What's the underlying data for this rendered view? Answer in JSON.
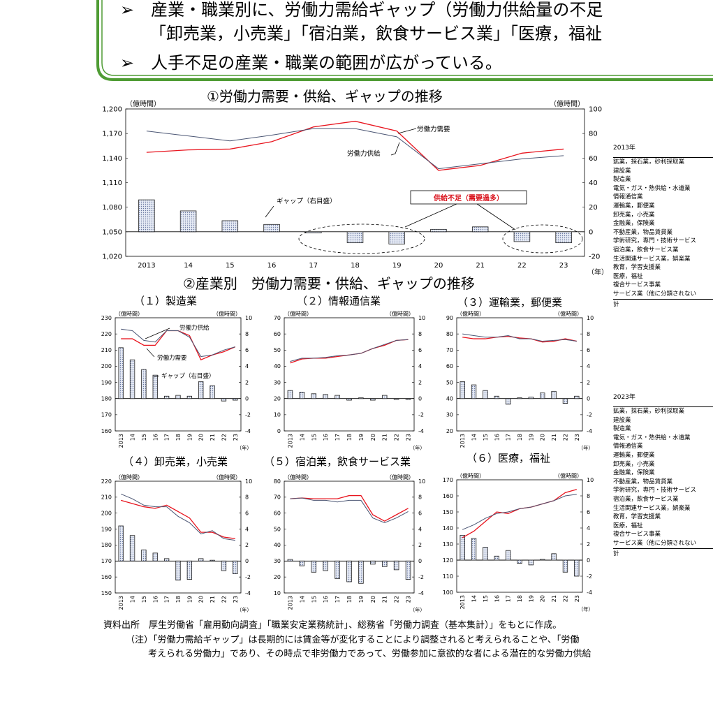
{
  "header": {
    "bullets": [
      "産業・職業別に、労働力需給ギャップ（労働力供給量の不足",
      "「卸売業，小売業」「宿泊業，飲食サービス業」「医療，福祉",
      "人手不足の産業・職業の範囲が広がっている。"
    ],
    "bullet_glyph": "➢"
  },
  "section1_title": "①労働力需要・供給、ギャップの推移",
  "section2_title": "②産業別　労働力需要・供給、ギャップの推移",
  "colors": {
    "demand": "#e8141e",
    "supply": "#4a5573",
    "bar_fill": "#c9d3ea",
    "bar_stroke": "#2b2b2b",
    "frame": "#4f9c34"
  },
  "chart_data": [
    {
      "id": "main",
      "type": "line+bar",
      "title": "①労働力需要・供給、ギャップの推移",
      "x": [
        "2013",
        "14",
        "15",
        "16",
        "17",
        "18",
        "19",
        "20",
        "21",
        "22",
        "23"
      ],
      "xunit": "（年）",
      "ylabel_left": "（億時間）",
      "ylabel_right": "（億時間）",
      "ylim_left": [
        1020,
        1200
      ],
      "ylim_right": [
        -20,
        100
      ],
      "yticks_left": [
        "1,020",
        "1,050",
        "1,080",
        "1,110",
        "1,140",
        "1,170",
        "1,200"
      ],
      "yticks_left_vals": [
        1020,
        1050,
        1080,
        1110,
        1140,
        1170,
        1200
      ],
      "yticks_right": [
        -20,
        0,
        20,
        40,
        60,
        80,
        100
      ],
      "series": [
        {
          "name": "労働力需要",
          "values": [
            1147,
            1150,
            1151,
            1160,
            1178,
            1185,
            1173,
            1125,
            1131,
            1146,
            1151
          ]
        },
        {
          "name": "労働力供給",
          "values": [
            1173,
            1167,
            1161,
            1168,
            1176,
            1176,
            1166,
            1127,
            1133,
            1139,
            1143
          ]
        }
      ],
      "gap": {
        "name": "ギャップ（右目盛）",
        "values": [
          26,
          17,
          9,
          6,
          -1,
          -9,
          -10,
          2,
          4,
          -8,
          -9
        ]
      },
      "annotation": "供給不足（需要過多）"
    },
    {
      "id": "p1",
      "title": "（１）製造業",
      "type": "line+bar",
      "x": [
        "2013",
        "14",
        "15",
        "16",
        "17",
        "18",
        "19",
        "20",
        "21",
        "22",
        "23"
      ],
      "ylim_left": [
        160,
        230
      ],
      "yticks_left": [
        160,
        170,
        180,
        190,
        200,
        210,
        220,
        230
      ],
      "ylim_right": [
        -4,
        10
      ],
      "yticks_right": [
        -4,
        -2,
        0,
        2,
        4,
        6,
        8,
        10
      ],
      "series": [
        {
          "name": "労働力需要",
          "values": [
            217,
            217,
            213,
            213,
            222,
            222,
            219,
            204,
            207,
            209,
            212
          ]
        },
        {
          "name": "労働力供給",
          "values": [
            223,
            222,
            216,
            215,
            222,
            222,
            218,
            206,
            207,
            210,
            212
          ]
        }
      ],
      "gap": {
        "name": "ギャップ（右目盛）",
        "values": [
          6.3,
          4.8,
          3.6,
          2.9,
          0.3,
          0.4,
          0.3,
          2.1,
          1.6,
          -0.3,
          -0.2
        ]
      },
      "annotations": [
        "労働力供給",
        "労働力需要",
        "ギャップ（右目盛）"
      ]
    },
    {
      "id": "p2",
      "title": "（２）情報通信業",
      "type": "line+bar",
      "x": [
        "2013",
        "14",
        "15",
        "16",
        "17",
        "18",
        "19",
        "20",
        "21",
        "22",
        "23"
      ],
      "ylim_left": [
        0,
        70
      ],
      "yticks_left": [
        0,
        10,
        20,
        30,
        40,
        50,
        60,
        70
      ],
      "ylim_right": [
        -4,
        10
      ],
      "yticks_right": [
        -4,
        -2,
        0,
        2,
        4,
        6,
        8,
        10
      ],
      "series": [
        {
          "name": "労働力需要",
          "values": [
            42,
            44.5,
            45,
            45,
            46,
            47,
            48,
            51,
            53,
            56,
            56.5
          ]
        },
        {
          "name": "労働力供給",
          "values": [
            43,
            45,
            45,
            45.5,
            46.5,
            47,
            48,
            51,
            53.5,
            56,
            56.5
          ]
        }
      ],
      "gap": {
        "values": [
          1.0,
          0.8,
          0.6,
          0.5,
          0.4,
          -0.2,
          0.1,
          -0.2,
          0.4,
          -0.1,
          -0.1
        ]
      }
    },
    {
      "id": "p3",
      "title": "（３）運輸業，郵便業",
      "type": "line+bar",
      "x": [
        "2013",
        "14",
        "15",
        "16",
        "17",
        "18",
        "19",
        "20",
        "21",
        "22",
        "23"
      ],
      "ylim_left": [
        20,
        90
      ],
      "yticks_left": [
        20,
        30,
        40,
        50,
        60,
        70,
        80,
        90
      ],
      "ylim_right": [
        -4,
        10
      ],
      "yticks_right": [
        -4,
        -2,
        0,
        2,
        4,
        6,
        8,
        10
      ],
      "series": [
        {
          "name": "労働力需要",
          "values": [
            78,
            77,
            77,
            78,
            78.5,
            77.5,
            77,
            75,
            75.5,
            77,
            75.5
          ]
        },
        {
          "name": "労働力供給",
          "values": [
            80,
            79,
            78,
            78,
            79,
            77,
            77,
            75.5,
            76,
            76.5,
            75.5
          ]
        }
      ],
      "gap": {
        "values": [
          2.1,
          1.7,
          1.0,
          0.3,
          -0.7,
          0.1,
          0.2,
          0.7,
          0.9,
          -0.6,
          0.3
        ]
      }
    },
    {
      "id": "p4",
      "title": "（４）卸売業，小売業",
      "type": "line+bar",
      "x": [
        "2013",
        "14",
        "15",
        "16",
        "17",
        "18",
        "19",
        "20",
        "21",
        "22",
        "23"
      ],
      "ylim_left": [
        150,
        220
      ],
      "yticks_left": [
        150,
        160,
        170,
        180,
        190,
        200,
        210,
        220
      ],
      "ylim_right": [
        -4,
        10
      ],
      "yticks_right": [
        -4,
        -2,
        0,
        2,
        4,
        6,
        8,
        10
      ],
      "series": [
        {
          "name": "労働力需要",
          "values": [
            208,
            206,
            204,
            203,
            205,
            201,
            197,
            188,
            188,
            185,
            184
          ]
        },
        {
          "name": "労働力供給",
          "values": [
            212,
            209,
            205,
            204,
            204,
            198,
            194,
            187,
            189,
            184,
            183
          ]
        }
      ],
      "gap": {
        "values": [
          4.4,
          3.2,
          1.4,
          1.0,
          0.3,
          -2.4,
          -2.3,
          0.3,
          0.1,
          -1.2,
          -1.6
        ]
      }
    },
    {
      "id": "p5",
      "title": "（５）宿泊業，飲食サービス業",
      "type": "line+bar",
      "x": [
        "2013",
        "14",
        "15",
        "16",
        "17",
        "18",
        "19",
        "20",
        "21",
        "22",
        "23"
      ],
      "ylim_left": [
        10,
        80
      ],
      "yticks_left": [
        10,
        20,
        30,
        40,
        50,
        60,
        70,
        80
      ],
      "ylim_right": [
        -4,
        10
      ],
      "yticks_right": [
        -4,
        -2,
        0,
        2,
        4,
        6,
        8,
        10
      ],
      "series": [
        {
          "name": "労働力需要",
          "values": [
            69,
            69.5,
            69,
            69,
            69,
            71,
            71,
            59,
            55,
            59,
            63
          ]
        },
        {
          "name": "労働力供給",
          "values": [
            69,
            69.5,
            68,
            68,
            67,
            68,
            68,
            57,
            54,
            57,
            61
          ]
        }
      ],
      "gap": {
        "values": [
          0.2,
          -0.6,
          -1.4,
          -1.2,
          -2.2,
          -2.6,
          -2.8,
          -0.4,
          -0.7,
          -1.1,
          -2.3
        ]
      }
    },
    {
      "id": "p6",
      "title": "（６）医療，福祉",
      "type": "line+bar",
      "x": [
        "2013",
        "14",
        "15",
        "16",
        "17",
        "18",
        "19",
        "20",
        "21",
        "22",
        "23"
      ],
      "ylim_left": [
        100,
        170
      ],
      "yticks_left": [
        100,
        110,
        120,
        130,
        140,
        150,
        160,
        170
      ],
      "ylim_right": [
        -4,
        10
      ],
      "yticks_right": [
        -4,
        -2,
        0,
        2,
        4,
        6,
        8,
        10
      ],
      "series": [
        {
          "name": "労働力需要",
          "values": [
            134,
            138,
            144,
            150,
            149,
            152,
            153,
            155,
            157,
            162,
            164
          ]
        },
        {
          "name": "労働力供給",
          "values": [
            139,
            142,
            146,
            149,
            150,
            152,
            153,
            155,
            157,
            160,
            161
          ]
        }
      ],
      "gap": {
        "values": [
          3.1,
          2.7,
          1.6,
          0.5,
          1.2,
          -0.4,
          -0.6,
          0.1,
          0.8,
          -1.5,
          -2.0
        ]
      }
    }
  ],
  "main_labels": {
    "demand": "労働力需要",
    "supply": "労働力供給",
    "gap": "ギャップ（右目盛）",
    "shortage": "供給不足（需要過多）"
  },
  "panel_axis_label": "（億時間）",
  "panel_xunit": "（年）",
  "sidelist_2013": {
    "year": "2013年",
    "items": [
      "鉱業，採石業，砂利採取業",
      "建設業",
      "製造業",
      "電気・ガス・熱供給・水道業",
      "情報通信業",
      "運輸業，郵便業",
      "卸売業，小売業",
      "金融業，保険業",
      "不動産業，物品賃貸業",
      "学術研究，専門・技術サービス",
      "宿泊業，飲食サービス業",
      "生活関連サービス業，娯楽業",
      "教育，学習支援業",
      "医療，福祉",
      "複合サービス事業",
      "サービス業（他に分類されない"
    ],
    "total": "計"
  },
  "sidelist_2023": {
    "year": "2023年",
    "items": [
      "鉱業，採石業，砂利採取業",
      "建設業",
      "製造業",
      "電気・ガス・熱供給・水道業",
      "情報通信業",
      "運輸業，郵便業",
      "卸売業，小売業",
      "金融業，保険業",
      "不動産業，物品賃貸業",
      "学術研究，専門・技術サービス",
      "宿泊業，飲食サービス業",
      "生活関連サービス業，娯楽業",
      "教育，学習支援業",
      "医療，福祉",
      "複合サービス事業",
      "サービス業（他に分類されない"
    ],
    "total": "計"
  },
  "footer": {
    "source": "資料出所　厚生労働省「雇用動向調査」「職業安定業務統計」、総務省「労働力調査（基本集計）」をもとに作成。",
    "note1": "（注）「労働力需給ギャップ」は長期的には賃金等が変化することにより調整されると考えられることや、「労働",
    "note2": "考えられる労働力」であり、その時点で非労働力であって、労働参加に意欲的な者による潜在的な労働力供給"
  }
}
